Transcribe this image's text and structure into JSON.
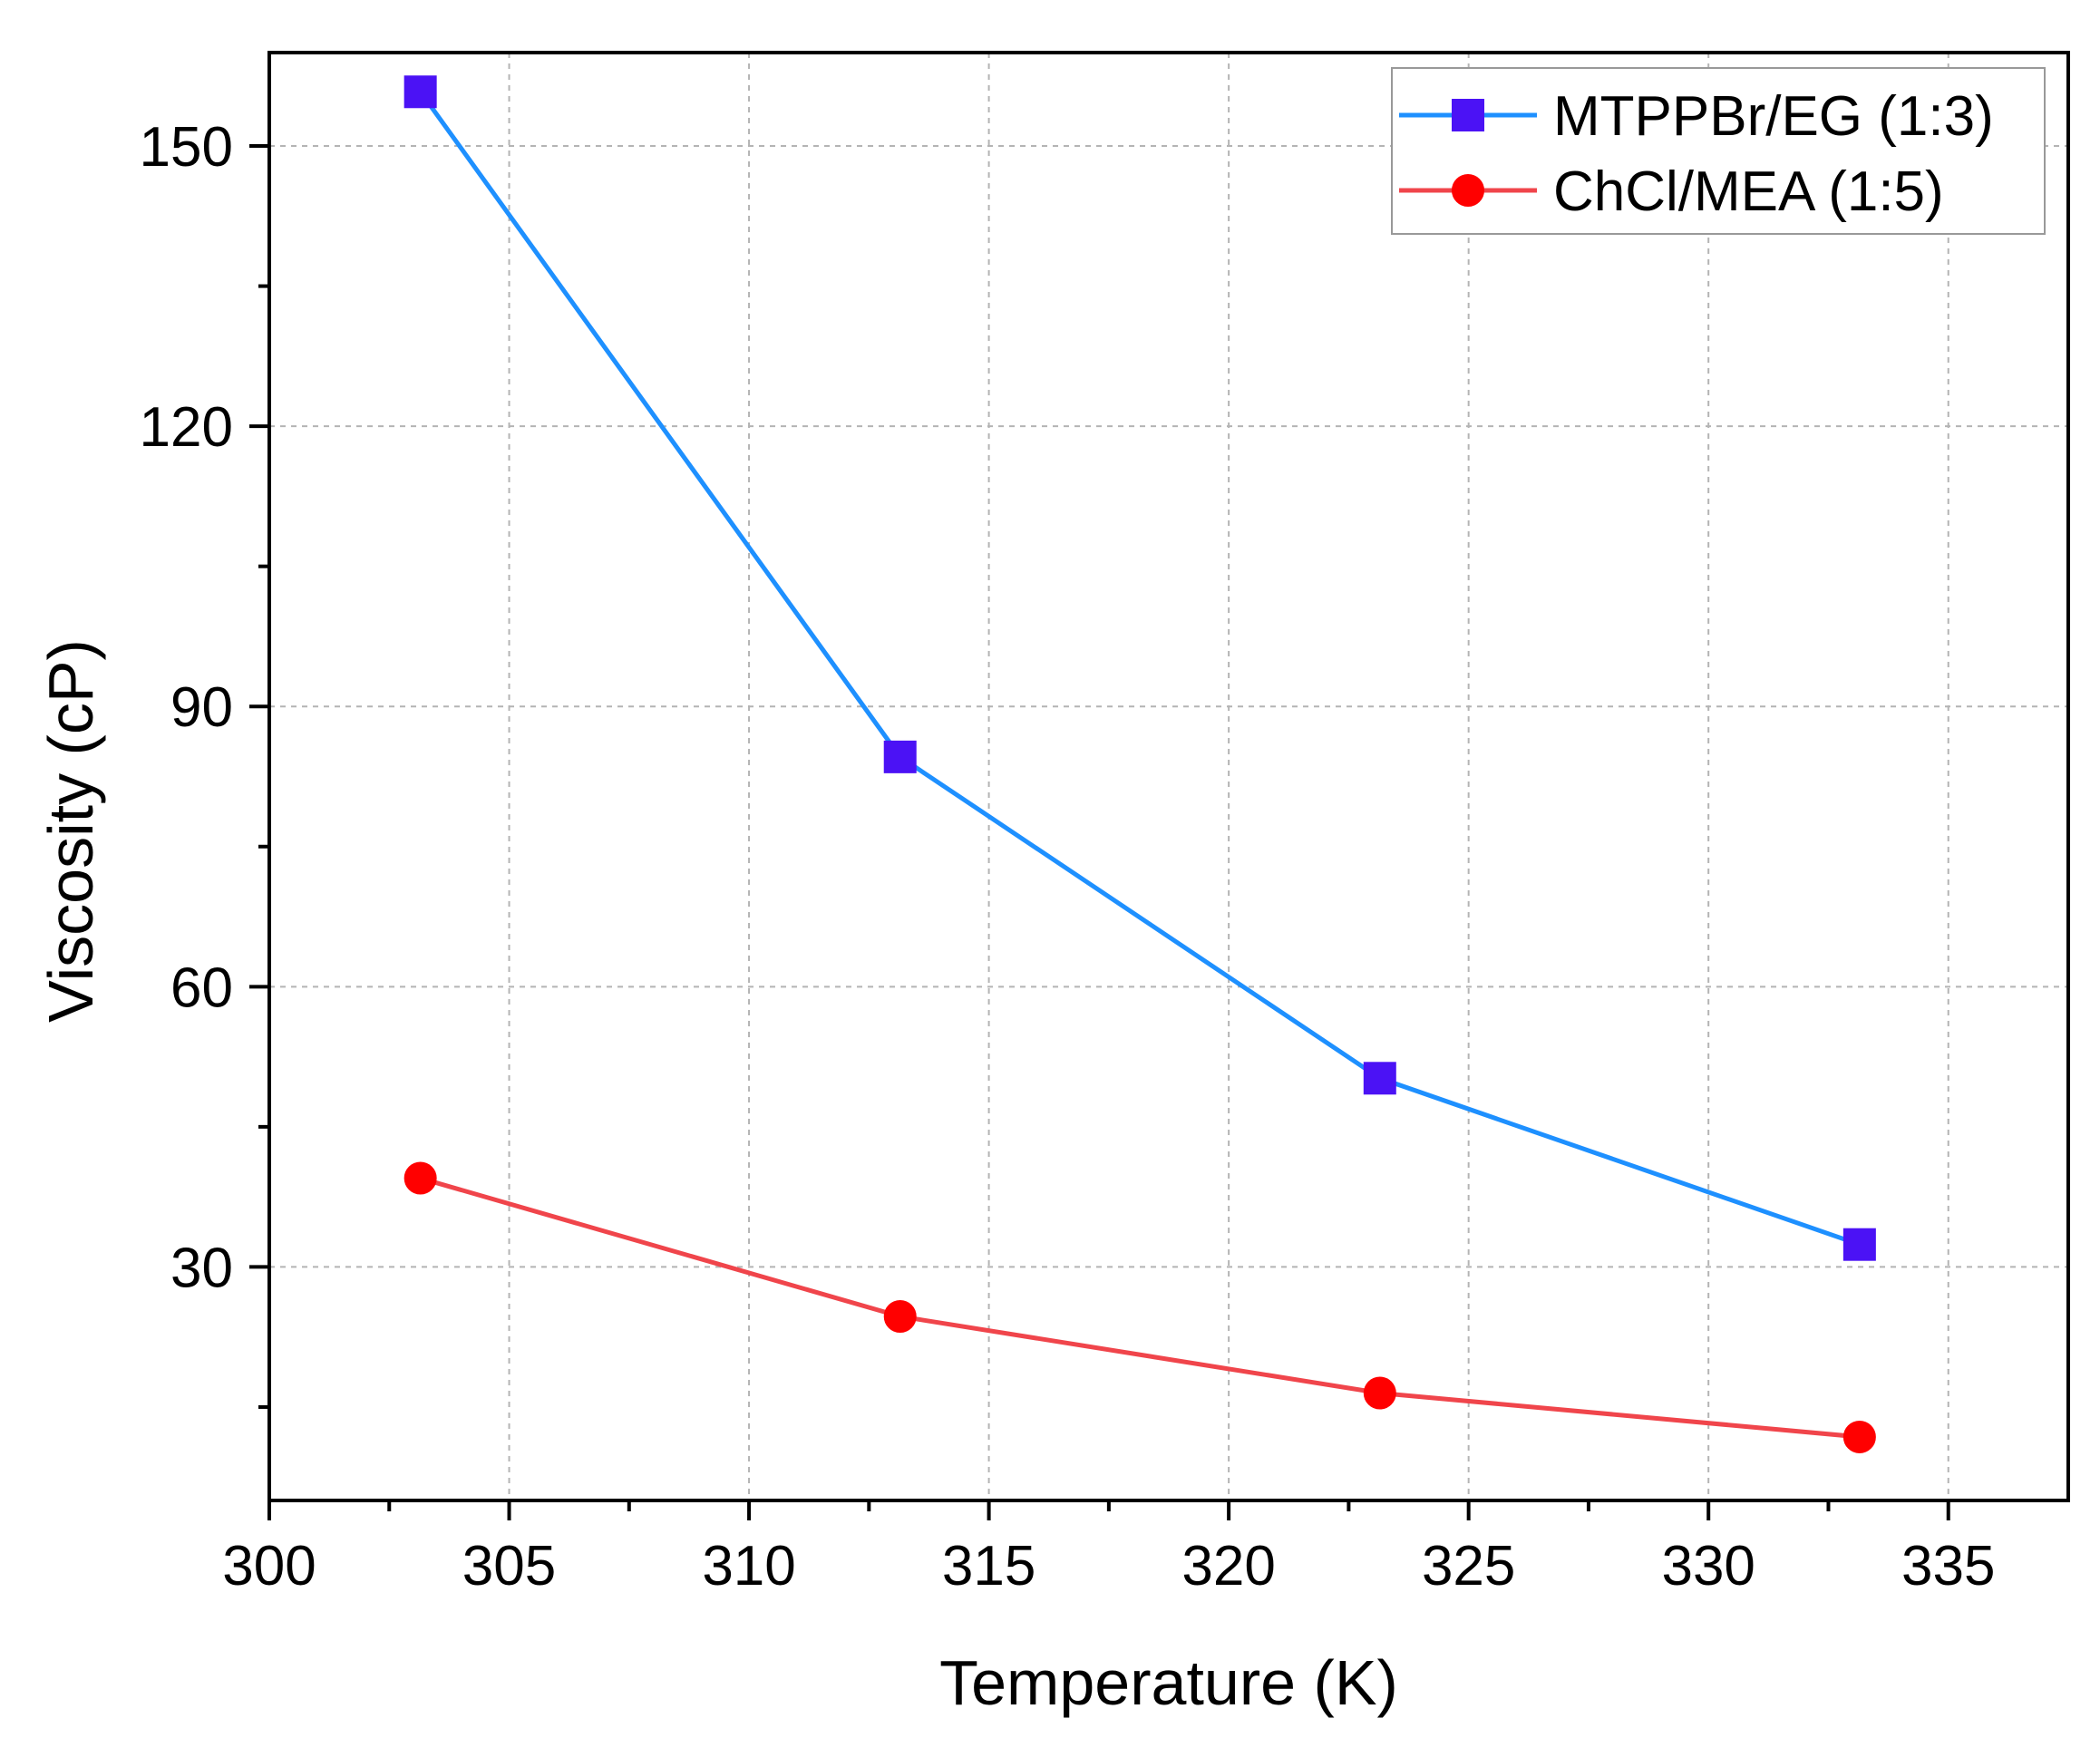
{
  "chart_data": {
    "type": "line",
    "title": "",
    "xlabel": "Temperature (K)",
    "ylabel": "Viscosity (cP)",
    "xlim": [
      300,
      337.5
    ],
    "ylim": [
      5,
      160
    ],
    "x_ticks": [
      300,
      305,
      310,
      315,
      320,
      325,
      330,
      335
    ],
    "y_ticks": [
      30,
      60,
      90,
      120,
      150
    ],
    "grid": true,
    "legend_position": "top-right",
    "series": [
      {
        "name": "MTPPBr/EG (1:3)",
        "color": "#1E90FF",
        "marker": "square",
        "marker_color": "#4B12F5",
        "x": [
          303.15,
          313.15,
          323.15,
          333.15
        ],
        "y": [
          155.8,
          84.6,
          50.2,
          32.4
        ]
      },
      {
        "name": "ChCl/MEA (1:5)",
        "color": "#F0454B",
        "marker": "circle",
        "marker_color": "#FF0000",
        "x": [
          303.15,
          313.15,
          323.15,
          333.15
        ],
        "y": [
          39.5,
          24.7,
          16.5,
          11.8
        ]
      }
    ]
  }
}
